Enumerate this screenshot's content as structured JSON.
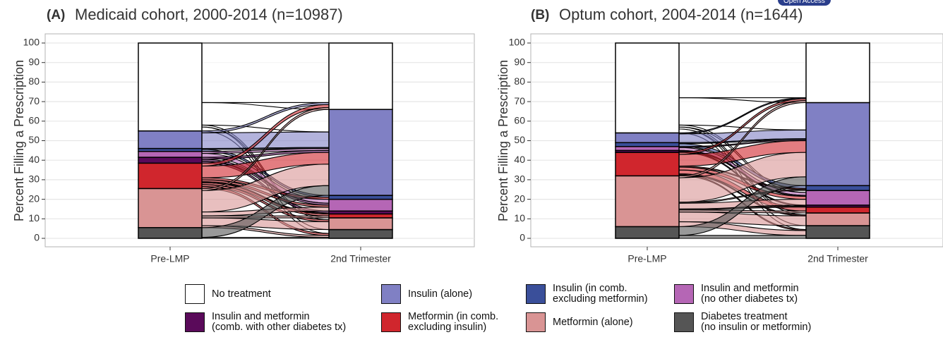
{
  "badge": "Open Access",
  "chart_data": [
    {
      "type": "alluvial",
      "tag": "(A)",
      "title": "Medicaid cohort, 2000-2014 (n=10987)",
      "y_label": "Percent Filling a Prescription",
      "categories": [
        "Pre-LMP",
        "2nd Trimester"
      ],
      "ylim": [
        0,
        100
      ],
      "yticks": [
        0,
        10,
        20,
        30,
        40,
        50,
        60,
        70,
        80,
        90,
        100
      ],
      "grid": true,
      "series": [
        {
          "name": "Diabetes treatment\n(no insulin or metformin)",
          "color": "#555555",
          "values": [
            5.5,
            4.5
          ]
        },
        {
          "name": "Metformin (alone)",
          "color": "#d99494",
          "values": [
            20,
            6
          ]
        },
        {
          "name": "Metformin (in comb.\nexcluding insulin)",
          "color": "#d0262d",
          "values": [
            13,
            2
          ]
        },
        {
          "name": "Insulin and metformin\n(comb. with other diabetes tx)",
          "color": "#5a0a5a",
          "values": [
            3,
            1.5
          ]
        },
        {
          "name": "Insulin and metformin\n(no other diabetes tx)",
          "color": "#b566b5",
          "values": [
            3,
            6
          ]
        },
        {
          "name": "Insulin (in comb.\nexcluding metformin)",
          "color": "#3a4f9a",
          "values": [
            1.5,
            2
          ]
        },
        {
          "name": "Insulin (alone)",
          "color": "#8080c4",
          "values": [
            9,
            44
          ]
        },
        {
          "name": "No treatment",
          "color": "#ffffff",
          "values": [
            45,
            34
          ]
        }
      ],
      "flows": [
        {
          "from": "No treatment",
          "to": "No treatment",
          "value": 30.5
        },
        {
          "from": "No treatment",
          "to": "Insulin (alone)",
          "value": 11.5
        },
        {
          "from": "No treatment",
          "to": "Metformin (alone)",
          "value": 1
        },
        {
          "from": "No treatment",
          "to": "Diabetes treatment\n(no insulin or metformin)",
          "value": 2
        },
        {
          "from": "Insulin (alone)",
          "to": "Insulin (alone)",
          "value": 8
        },
        {
          "from": "Insulin (alone)",
          "to": "No treatment",
          "value": 1
        },
        {
          "from": "Insulin (in comb.\nexcluding metformin)",
          "to": "Insulin (in comb.\nexcluding metformin)",
          "value": 1
        },
        {
          "from": "Insulin (in comb.\nexcluding metformin)",
          "to": "Insulin (alone)",
          "value": 0.5
        },
        {
          "from": "Insulin and metformin\n(no other diabetes tx)",
          "to": "Insulin and metformin\n(no other diabetes tx)",
          "value": 2
        },
        {
          "from": "Insulin and metformin\n(no other diabetes tx)",
          "to": "Insulin (alone)",
          "value": 1
        },
        {
          "from": "Insulin and metformin\n(comb. with other diabetes tx)",
          "to": "Insulin and metformin\n(comb. with other diabetes tx)",
          "value": 1
        },
        {
          "from": "Insulin and metformin\n(comb. with other diabetes tx)",
          "to": "Insulin and metformin\n(no other diabetes tx)",
          "value": 1
        },
        {
          "from": "Insulin and metformin\n(comb. with other diabetes tx)",
          "to": "Insulin (alone)",
          "value": 1
        },
        {
          "from": "Metformin (in comb.\nexcluding insulin)",
          "to": "Metformin (in comb.\nexcluding insulin)",
          "value": 1
        },
        {
          "from": "Metformin (in comb.\nexcluding insulin)",
          "to": "Insulin (alone)",
          "value": 6
        },
        {
          "from": "Metformin (in comb.\nexcluding insulin)",
          "to": "Insulin and metformin\n(no other diabetes tx)",
          "value": 1
        },
        {
          "from": "Metformin (in comb.\nexcluding insulin)",
          "to": "No treatment",
          "value": 1.5
        },
        {
          "from": "Metformin (in comb.\nexcluding insulin)",
          "to": "Metformin (alone)",
          "value": 1
        },
        {
          "from": "Metformin (in comb.\nexcluding insulin)",
          "to": "Diabetes treatment\n(no insulin or metformin)",
          "value": 1
        },
        {
          "from": "Metformin (in comb.\nexcluding insulin)",
          "to": "Insulin (in comb.\nexcluding metformin)",
          "value": 1
        },
        {
          "from": "Metformin (in comb.\nexcluding insulin)",
          "to": "Insulin and metformin\n(comb. with other diabetes tx)",
          "value": 0.5
        },
        {
          "from": "Metformin (alone)",
          "to": "Insulin (alone)",
          "value": 11
        },
        {
          "from": "Metformin (alone)",
          "to": "Metformin (alone)",
          "value": 4
        },
        {
          "from": "Metformin (alone)",
          "to": "Metformin (in comb.\nexcluding insulin)",
          "value": 1
        },
        {
          "from": "Metformin (alone)",
          "to": "Insulin and metformin\n(no other diabetes tx)",
          "value": 2
        },
        {
          "from": "Metformin (alone)",
          "to": "No treatment",
          "value": 1
        },
        {
          "from": "Metformin (alone)",
          "to": "Diabetes treatment\n(no insulin or metformin)",
          "value": 1
        },
        {
          "from": "Diabetes treatment\n(no insulin or metformin)",
          "to": "Diabetes treatment\n(no insulin or metformin)",
          "value": 0.5
        },
        {
          "from": "Diabetes treatment\n(no insulin or metformin)",
          "to": "Insulin (alone)",
          "value": 5
        }
      ]
    },
    {
      "type": "alluvial",
      "tag": "(B)",
      "title": "Optum cohort, 2004-2014 (n=1644)",
      "y_label": "Percent Filling a Prescription",
      "categories": [
        "Pre-LMP",
        "2nd Trimester"
      ],
      "ylim": [
        0,
        100
      ],
      "yticks": [
        0,
        10,
        20,
        30,
        40,
        50,
        60,
        70,
        80,
        90,
        100
      ],
      "grid": true,
      "series": [
        {
          "name": "Diabetes treatment\n(no insulin or metformin)",
          "color": "#555555",
          "values": [
            6,
            6.5
          ]
        },
        {
          "name": "Metformin (alone)",
          "color": "#d99494",
          "values": [
            26,
            6.5
          ]
        },
        {
          "name": "Metformin (in comb.\nexcluding insulin)",
          "color": "#d0262d",
          "values": [
            12,
            3
          ]
        },
        {
          "name": "Insulin and metformin\n(comb. with other diabetes tx)",
          "color": "#5a0a5a",
          "values": [
            1,
            1
          ]
        },
        {
          "name": "Insulin and metformin\n(no other diabetes tx)",
          "color": "#b566b5",
          "values": [
            2,
            7.5
          ]
        },
        {
          "name": "Insulin (in comb.\nexcluding metformin)",
          "color": "#3a4f9a",
          "values": [
            2,
            2.5
          ]
        },
        {
          "name": "Insulin (alone)",
          "color": "#8080c4",
          "values": [
            5,
            42.5
          ]
        },
        {
          "name": "No treatment",
          "color": "#ffffff",
          "values": [
            46,
            30.5
          ]
        }
      ],
      "flows": [
        {
          "from": "No treatment",
          "to": "No treatment",
          "value": 28
        },
        {
          "from": "No treatment",
          "to": "Insulin (alone)",
          "value": 14
        },
        {
          "from": "No treatment",
          "to": "Metformin (alone)",
          "value": 1
        },
        {
          "from": "No treatment",
          "to": "Diabetes treatment\n(no insulin or metformin)",
          "value": 2
        },
        {
          "from": "No treatment",
          "to": "Insulin and metformin\n(no other diabetes tx)",
          "value": 1
        },
        {
          "from": "Insulin (alone)",
          "to": "Insulin (alone)",
          "value": 4.5
        },
        {
          "from": "Insulin (alone)",
          "to": "No treatment",
          "value": 0.5
        },
        {
          "from": "Insulin (in comb.\nexcluding metformin)",
          "to": "Insulin (in comb.\nexcluding metformin)",
          "value": 1.5
        },
        {
          "from": "Insulin (in comb.\nexcluding metformin)",
          "to": "Insulin (alone)",
          "value": 0.5
        },
        {
          "from": "Insulin and metformin\n(no other diabetes tx)",
          "to": "Insulin and metformin\n(no other diabetes tx)",
          "value": 1.5
        },
        {
          "from": "Insulin and metformin\n(no other diabetes tx)",
          "to": "Insulin (alone)",
          "value": 0.5
        },
        {
          "from": "Insulin and metformin\n(comb. with other diabetes tx)",
          "to": "Insulin and metformin\n(comb. with other diabetes tx)",
          "value": 0.5
        },
        {
          "from": "Insulin and metformin\n(comb. with other diabetes tx)",
          "to": "Insulin and metformin\n(no other diabetes tx)",
          "value": 0.5
        },
        {
          "from": "Metformin (in comb.\nexcluding insulin)",
          "to": "Metformin (in comb.\nexcluding insulin)",
          "value": 2
        },
        {
          "from": "Metformin (in comb.\nexcluding insulin)",
          "to": "Insulin (alone)",
          "value": 6
        },
        {
          "from": "Metformin (in comb.\nexcluding insulin)",
          "to": "Insulin and metformin\n(no other diabetes tx)",
          "value": 1.5
        },
        {
          "from": "Metformin (in comb.\nexcluding insulin)",
          "to": "No treatment",
          "value": 1
        },
        {
          "from": "Metformin (in comb.\nexcluding insulin)",
          "to": "Metformin (alone)",
          "value": 0.5
        },
        {
          "from": "Metformin (in comb.\nexcluding insulin)",
          "to": "Diabetes treatment\n(no insulin or metformin)",
          "value": 0.5
        },
        {
          "from": "Metformin (in comb.\nexcluding insulin)",
          "to": "Insulin (in comb.\nexcluding metformin)",
          "value": 0.5
        },
        {
          "from": "Metformin (alone)",
          "to": "Insulin (alone)",
          "value": 12.5
        },
        {
          "from": "Metformin (alone)",
          "to": "Metformin (alone)",
          "value": 5
        },
        {
          "from": "Metformin (alone)",
          "to": "Insulin and metformin\n(no other diabetes tx)",
          "value": 3
        },
        {
          "from": "Metformin (alone)",
          "to": "No treatment",
          "value": 1
        },
        {
          "from": "Metformin (alone)",
          "to": "Diabetes treatment\n(no insulin or metformin)",
          "value": 2.5
        },
        {
          "from": "Metformin (alone)",
          "to": "Metformin (in comb.\nexcluding insulin)",
          "value": 1
        },
        {
          "from": "Metformin (alone)",
          "to": "Insulin and metformin\n(comb. with other diabetes tx)",
          "value": 0.5
        },
        {
          "from": "Metformin (alone)",
          "to": "Insulin (in comb.\nexcluding metformin)",
          "value": 0.5
        },
        {
          "from": "Diabetes treatment\n(no insulin or metformin)",
          "to": "Diabetes treatment\n(no insulin or metformin)",
          "value": 1.5
        },
        {
          "from": "Diabetes treatment\n(no insulin or metformin)",
          "to": "Insulin (alone)",
          "value": 4.5
        }
      ]
    }
  ]
}
